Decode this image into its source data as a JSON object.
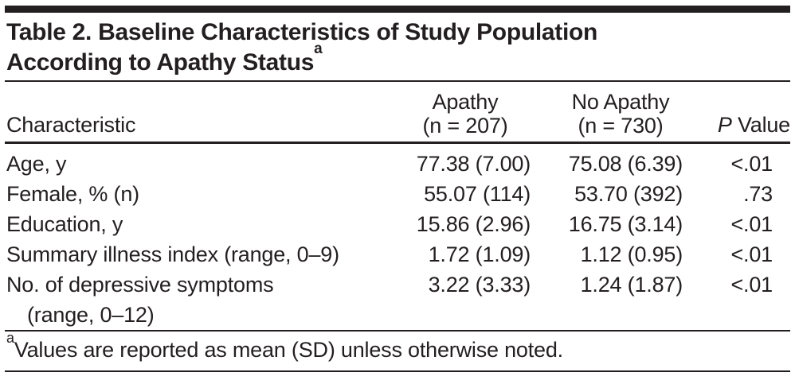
{
  "page": {
    "background": "#ffffff",
    "text_color": "#231f20",
    "rule_color": "#231f20"
  },
  "table": {
    "title": {
      "line1": "Table 2. Baseline Characteristics of Study Population",
      "line2": "According to Apathy Status",
      "superscript": "a"
    },
    "header": {
      "characteristic": "Characteristic",
      "apathy_line1": "Apathy",
      "apathy_line2": "(n = 207)",
      "no_apathy_line1": "No Apathy",
      "no_apathy_line2": "(n = 730)",
      "p_italic": "P",
      "p_rest": " Value"
    },
    "rows": [
      {
        "characteristic": "Age, y",
        "apathy": "77.38 (7.00)",
        "no_apathy": "75.08 (6.39)",
        "p": "<.01"
      },
      {
        "characteristic": "Female, % (n)",
        "apathy": "55.07 (114)",
        "no_apathy": "53.70 (392)",
        "p": ".73"
      },
      {
        "characteristic": "Education, y",
        "apathy": "15.86 (2.96)",
        "no_apathy": "16.75 (3.14)",
        "p": "<.01"
      },
      {
        "characteristic": "Summary illness index (range, 0–9)",
        "apathy": "1.72 (1.09)",
        "no_apathy": "1.12 (0.95)",
        "p": "<.01"
      },
      {
        "characteristic_line1": "No. of depressive symptoms",
        "characteristic_line2": "(range, 0–12)",
        "apathy": "3.22 (3.33)",
        "no_apathy": "1.24 (1.87)",
        "p": "<.01"
      }
    ],
    "footnote": {
      "marker": "a",
      "text": "Values are reported as mean (SD) unless otherwise noted."
    }
  }
}
